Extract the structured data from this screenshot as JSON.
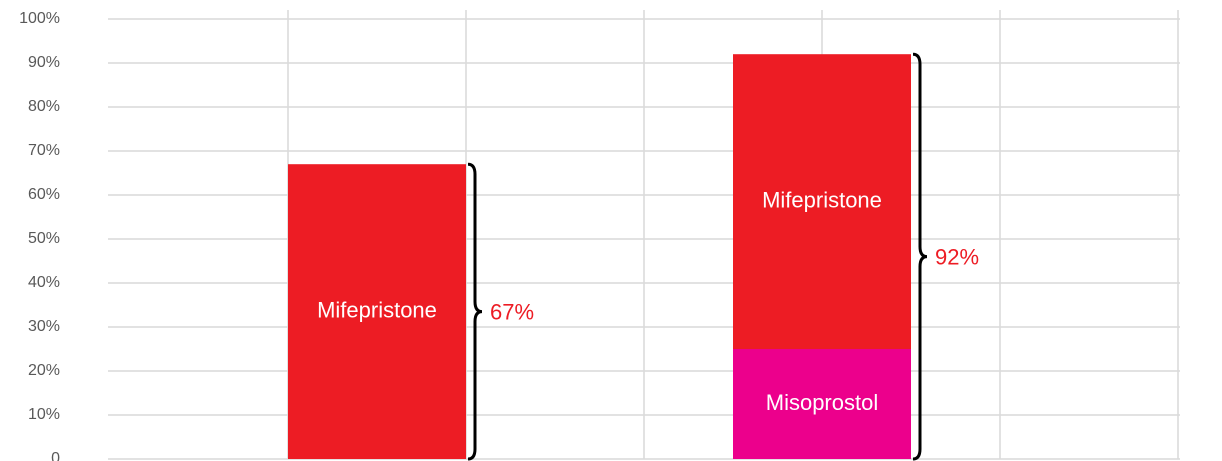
{
  "chart_data": {
    "type": "stacked_bar",
    "categories": [
      null,
      null
    ],
    "series": [
      {
        "name": "Misoprostol",
        "color": "#ec008c",
        "values": [
          null,
          25
        ]
      },
      {
        "name": "Mifepristone",
        "color": "#ed1c24",
        "values": [
          67,
          67
        ]
      }
    ],
    "totals": {
      "values": [
        67,
        92
      ],
      "value_labels": [
        "67%",
        "92%"
      ],
      "color": "#ed1c24"
    },
    "ylim": [
      0,
      100
    ],
    "yticks": [
      0,
      {
        "value": 10,
        "label": "10%"
      },
      {
        "value": 20,
        "label": "20%"
      },
      {
        "value": 30,
        "label": "30%"
      },
      {
        "value": 40,
        "label": "40%"
      },
      {
        "value": 50,
        "label": "50%"
      },
      {
        "value": 60,
        "label": "60%"
      },
      {
        "value": 70,
        "label": "70%"
      },
      {
        "value": 80,
        "label": "80%"
      },
      {
        "value": 90,
        "label": "90%"
      },
      {
        "value": 100,
        "label": "100%"
      }
    ],
    "grid": true
  }
}
